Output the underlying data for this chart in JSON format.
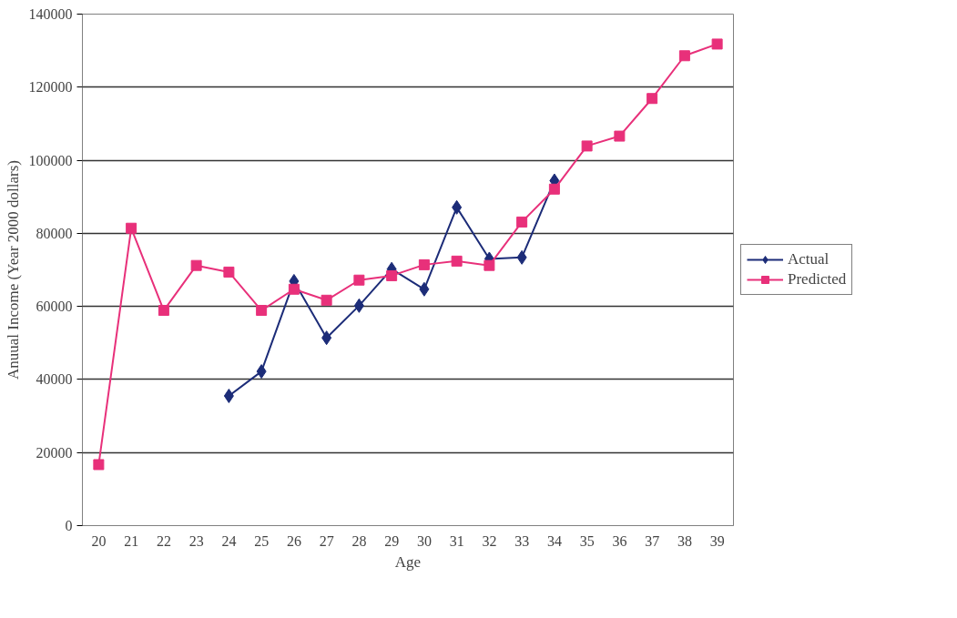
{
  "chart_data": {
    "type": "line",
    "xlabel": "Age",
    "ylabel": "Anuual Income (Year 2000 dollars)",
    "categories": [
      "20",
      "21",
      "22",
      "23",
      "24",
      "25",
      "26",
      "27",
      "28",
      "29",
      "30",
      "31",
      "32",
      "33",
      "34",
      "35",
      "36",
      "37",
      "38",
      "39"
    ],
    "series": [
      {
        "name": "Actual",
        "color": "#1c2c78",
        "marker": "diamond",
        "values": [
          null,
          null,
          null,
          null,
          35500,
          42200,
          66900,
          51400,
          60200,
          70200,
          64700,
          87100,
          73000,
          73400,
          94400,
          null,
          null,
          null,
          null,
          null
        ]
      },
      {
        "name": "Predicted",
        "color": "#e8307a",
        "marker": "square",
        "values": [
          16700,
          81400,
          58900,
          71200,
          69400,
          58900,
          64700,
          61700,
          67200,
          68400,
          71400,
          72400,
          71200,
          83100,
          92100,
          103900,
          106600,
          116900,
          128600,
          131800
        ]
      }
    ],
    "ylim": [
      0,
      140000
    ],
    "yticks": [
      0,
      20000,
      40000,
      60000,
      80000,
      100000,
      120000,
      140000
    ],
    "grid": "y",
    "legend": "right",
    "line_style": "solid"
  }
}
